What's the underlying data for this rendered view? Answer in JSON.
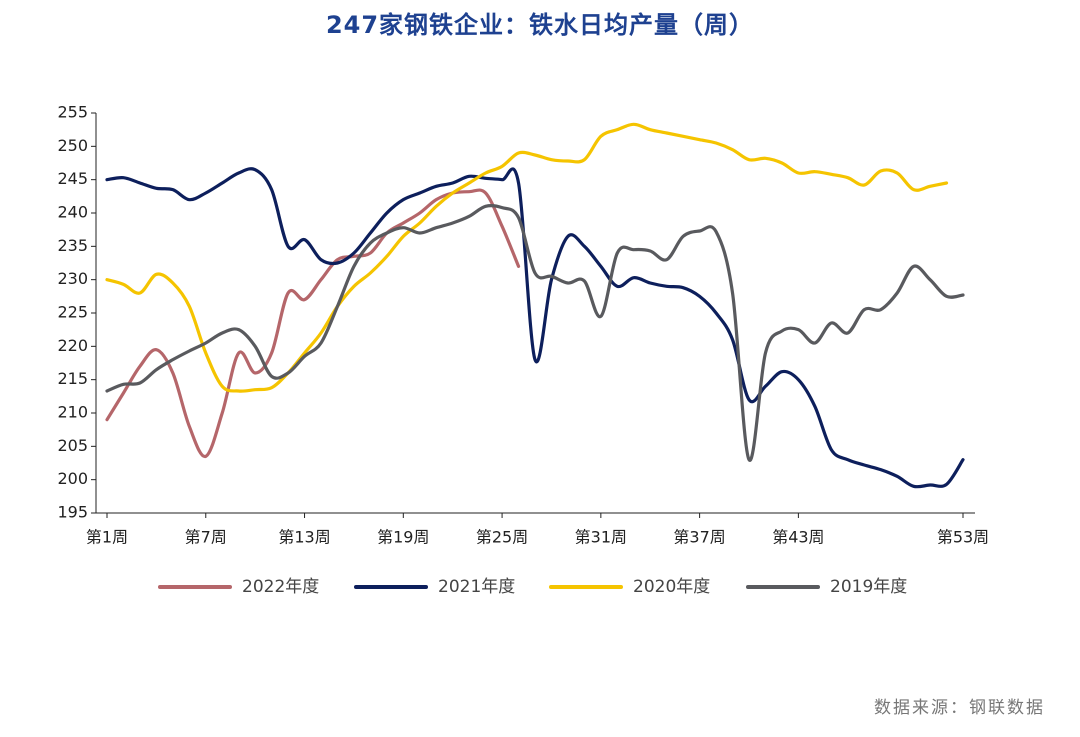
{
  "chart_data": {
    "type": "line",
    "title": "247家钢铁企业：铁水日均产量（周）",
    "source": "数据来源：钢联数据",
    "categories": [
      "第1周",
      null,
      null,
      null,
      null,
      null,
      "第7周",
      null,
      null,
      null,
      null,
      null,
      "第13周",
      null,
      null,
      null,
      null,
      null,
      "第19周",
      null,
      null,
      null,
      null,
      null,
      "第25周",
      null,
      null,
      null,
      null,
      null,
      "第31周",
      null,
      null,
      null,
      null,
      null,
      "第37周",
      null,
      null,
      null,
      null,
      null,
      "第43周",
      null,
      null,
      null,
      null,
      null,
      null,
      null,
      null,
      null,
      "第53周"
    ],
    "ylim": [
      195,
      255
    ],
    "yticks": [
      195,
      200,
      205,
      210,
      215,
      220,
      225,
      230,
      235,
      240,
      245,
      250,
      255
    ],
    "series": [
      {
        "name": "2022年度",
        "color": "#b5666a",
        "values": [
          209,
          213,
          217,
          219.5,
          216,
          208,
          203.5,
          210,
          219,
          216,
          219,
          228,
          227,
          230,
          233,
          233.5,
          234,
          237,
          238.5,
          240,
          242,
          243,
          243.2,
          243,
          238,
          232,
          null,
          null,
          null,
          null,
          null,
          null,
          null,
          null,
          null,
          null,
          null,
          null,
          null,
          null,
          null,
          null,
          null,
          null,
          null,
          null,
          null,
          null,
          null,
          null,
          null,
          null,
          null
        ]
      },
      {
        "name": "2021年度",
        "color": "#0d1f5c",
        "values": [
          245,
          245.3,
          244.5,
          243.7,
          243.5,
          242,
          243,
          244.5,
          246,
          246.5,
          243.5,
          235,
          236,
          233,
          232.5,
          234,
          237,
          240,
          242,
          243,
          244,
          244.5,
          245.5,
          245.2,
          245,
          244.5,
          218,
          230,
          236.5,
          235,
          232,
          229,
          230.3,
          229.5,
          229,
          228.8,
          227.5,
          225,
          221,
          212,
          214,
          216.2,
          215,
          211,
          204.5,
          203,
          202.2,
          201.5,
          200.5,
          199,
          199.2,
          199.3,
          203
        ]
      },
      {
        "name": "2020年度",
        "color": "#f5c400",
        "values": [
          230,
          229.3,
          228,
          230.8,
          229.5,
          226,
          219,
          214,
          213.3,
          213.5,
          213.8,
          216,
          219,
          222,
          226,
          229,
          231,
          233.5,
          236.5,
          238.5,
          241,
          243,
          244.5,
          246,
          247,
          249,
          248.7,
          248,
          247.8,
          248,
          251.5,
          252.5,
          253.3,
          252.5,
          252,
          251.5,
          251,
          250.5,
          249.5,
          248,
          248.2,
          247.5,
          246,
          246.2,
          245.8,
          245.3,
          244.2,
          246.3,
          246,
          243.5,
          244,
          244.5,
          null
        ]
      },
      {
        "name": "2019年度",
        "color": "#595a5e",
        "values": [
          213.3,
          214.3,
          214.5,
          216.5,
          218,
          219.3,
          220.5,
          222,
          222.5,
          220,
          215.5,
          216,
          218.5,
          220.5,
          226,
          232,
          235.5,
          237,
          237.8,
          237,
          237.8,
          238.5,
          239.5,
          241,
          240.8,
          239.3,
          231,
          230.5,
          229.5,
          229.8,
          224.5,
          234,
          234.5,
          234.3,
          233,
          236.5,
          237.3,
          237.2,
          228,
          203,
          219,
          222.3,
          222.5,
          220.5,
          223.5,
          222,
          225.5,
          225.5,
          228,
          232,
          230,
          227.5,
          227.7
        ]
      }
    ]
  }
}
